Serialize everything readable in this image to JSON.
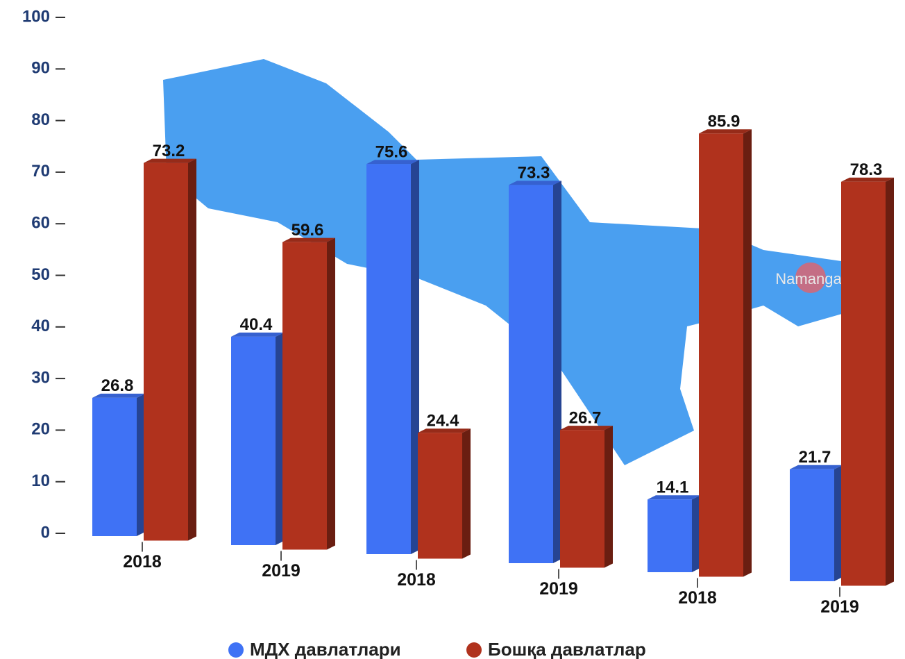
{
  "chart_data": {
    "type": "bar",
    "categories": [
      "2018",
      "2019",
      "2018",
      "2019",
      "2018",
      "2019"
    ],
    "series": [
      {
        "name": "МДХ давлатлари",
        "color": "#3f72f5",
        "values": [
          26.8,
          40.4,
          75.6,
          73.3,
          14.1,
          21.7
        ]
      },
      {
        "name": "Бошқа давлатлар",
        "color": "#b0321d",
        "values": [
          73.2,
          59.6,
          24.4,
          26.7,
          85.9,
          78.3
        ]
      }
    ],
    "ylim": [
      0,
      100
    ],
    "yticks": [
      0,
      10,
      20,
      30,
      40,
      50,
      60,
      70,
      80,
      90,
      100
    ],
    "annotation": "Namanga"
  }
}
